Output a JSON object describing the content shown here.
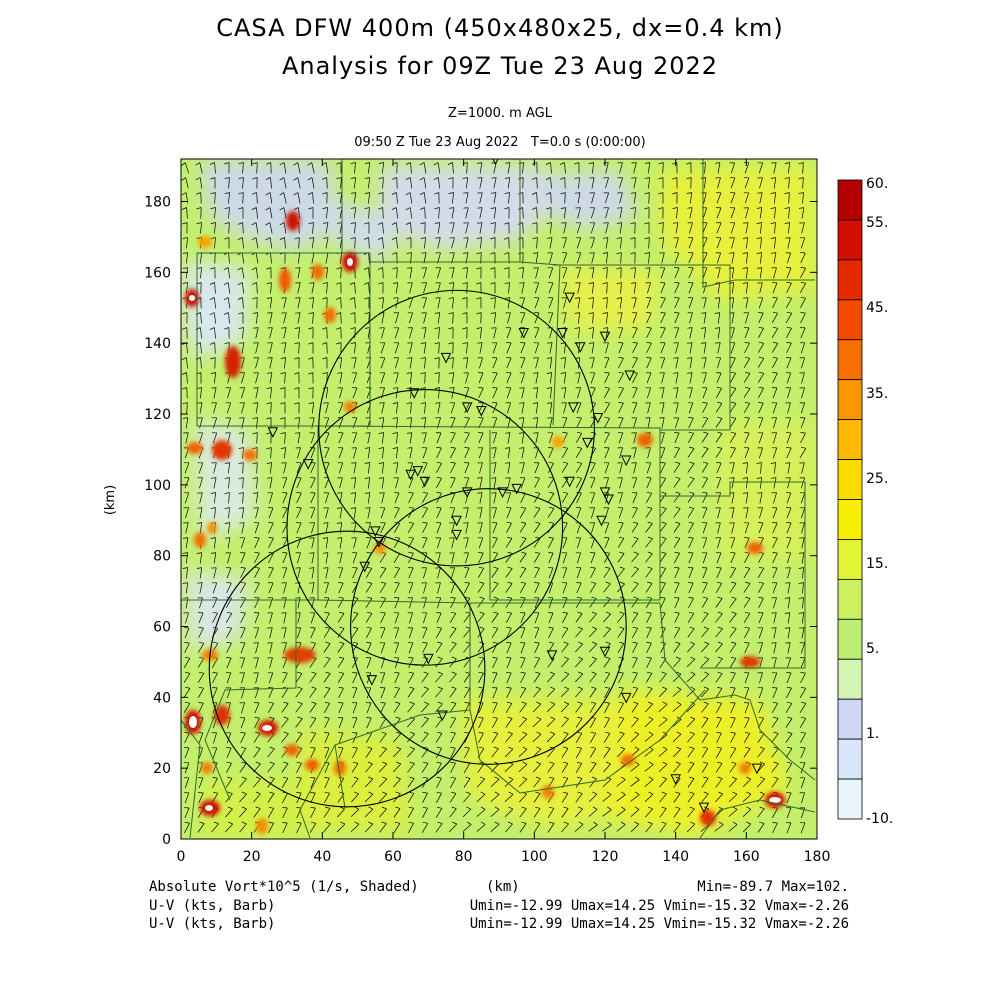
{
  "title_line1": "CASA DFW 400m (450x480x25, dx=0.4 km)",
  "title_line2": "Analysis for 09Z Tue 23 Aug 2022",
  "subtitle_level": "Z=1000. m AGL",
  "subtitle_time": "09:50 Z Tue 23 Aug 2022   T=0.0 s (0:00:00)",
  "chart_data": {
    "type": "heatmap",
    "xlabel": "(km)",
    "ylabel": "(km)",
    "xlim": [
      0,
      180
    ],
    "ylim": [
      0,
      192
    ],
    "x_ticks": [
      0,
      20,
      40,
      60,
      80,
      100,
      120,
      140,
      160,
      180
    ],
    "y_ticks": [
      0,
      20,
      40,
      60,
      80,
      100,
      120,
      140,
      160,
      180
    ],
    "colorbar": {
      "label_values": [
        "60.",
        "55.",
        "45.",
        "35.",
        "25.",
        "15.",
        "5.",
        "1.",
        "-10."
      ],
      "colors": [
        "#b40000",
        "#d21000",
        "#e62a00",
        "#f24a00",
        "#f76f00",
        "#fb9500",
        "#fdb900",
        "#fedc00",
        "#f6f000",
        "#e2f434",
        "#cdf05e",
        "#bdee72",
        "#d4f4b4",
        "#cdd6f4",
        "#d8e6f8",
        "#e8f6fc"
      ]
    },
    "radar_range_rings": [
      {
        "center_km": [
          78,
          116
        ],
        "radius_km": 39
      },
      {
        "center_km": [
          69,
          88
        ],
        "radius_km": 39
      },
      {
        "center_km": [
          87,
          60
        ],
        "radius_km": 39
      },
      {
        "center_km": [
          47,
          48
        ],
        "radius_km": 39
      }
    ],
    "radar_sites_km": [
      [
        89,
        192
      ],
      [
        110,
        153
      ],
      [
        97,
        143
      ],
      [
        108,
        143
      ],
      [
        120,
        142
      ],
      [
        113,
        139
      ],
      [
        75,
        136
      ],
      [
        127,
        131
      ],
      [
        66,
        126
      ],
      [
        81,
        122
      ],
      [
        85,
        121
      ],
      [
        111,
        122
      ],
      [
        118,
        119
      ],
      [
        26,
        115
      ],
      [
        115,
        112
      ],
      [
        126,
        107
      ],
      [
        65,
        103
      ],
      [
        67,
        104
      ],
      [
        69,
        101
      ],
      [
        120,
        98
      ],
      [
        81,
        98
      ],
      [
        91,
        98
      ],
      [
        95,
        99
      ],
      [
        36,
        106
      ],
      [
        121,
        96
      ],
      [
        119,
        90
      ],
      [
        78,
        90
      ],
      [
        110,
        101
      ],
      [
        55,
        87
      ],
      [
        56,
        84
      ],
      [
        78,
        86
      ],
      [
        52,
        77
      ],
      [
        120,
        53
      ],
      [
        105,
        52
      ],
      [
        70,
        51
      ],
      [
        54,
        45
      ],
      [
        126,
        40
      ],
      [
        74,
        35
      ],
      [
        140,
        17
      ],
      [
        163,
        20
      ],
      [
        148,
        9
      ]
    ],
    "footer_left": [
      "Absolute Vort*10^5 (1/s, Shaded)",
      "U-V (kts, Barb)",
      "U-V (kts, Barb)"
    ],
    "footer_unit": "(km)",
    "footer_minmax": "Min=-89.7 Max=102.",
    "footer_uv": [
      "Umin=-12.99 Umax=14.25 Vmin=-15.32 Vmax=-2.26",
      "Umin=-12.99 Umax=14.25 Vmin=-15.32 Vmax=-2.26"
    ]
  }
}
